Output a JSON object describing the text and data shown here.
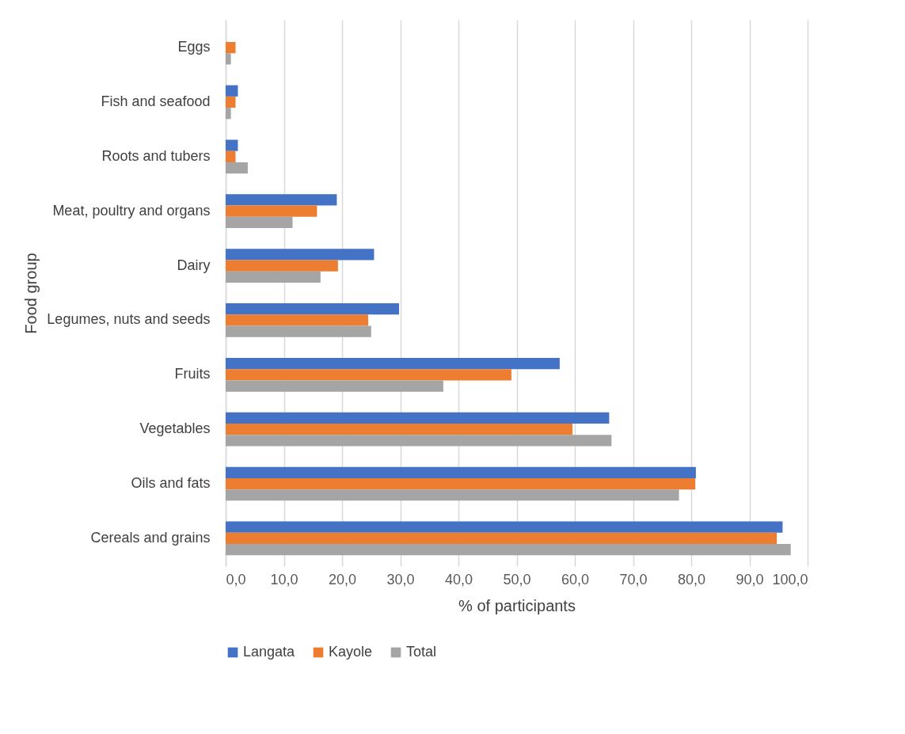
{
  "chart_data": {
    "type": "bar",
    "orientation": "horizontal",
    "xlabel": "% of participants",
    "ylabel": "Food group",
    "categories": [
      "Eggs",
      "Fish and seafood",
      "Roots and tubers",
      "Meat, poultry and organs",
      "Dairy",
      "Legumes, nuts and seeds",
      "Fruits",
      "Vegetables",
      "Oils and fats",
      "Cereals and grains"
    ],
    "series": [
      {
        "name": "Langata",
        "color": "#4472c4",
        "values": [
          0,
          2.1,
          2.1,
          19.1,
          25.5,
          29.8,
          57.4,
          65.9,
          80.8,
          95.7
        ]
      },
      {
        "name": "Kayole",
        "color": "#ed7d31",
        "values": [
          1.7,
          1.7,
          1.7,
          15.7,
          19.3,
          24.5,
          49.1,
          59.6,
          80.7,
          94.7
        ]
      },
      {
        "name": "Total",
        "color": "#a5a5a5",
        "values": [
          0.9,
          0.9,
          3.8,
          11.5,
          16.3,
          25.0,
          37.4,
          66.3,
          77.9,
          97.1
        ]
      }
    ],
    "xlim": [
      0,
      100
    ],
    "xticks": [
      {
        "value": 0,
        "label": "0,0"
      },
      {
        "value": 10,
        "label": "10,0"
      },
      {
        "value": 20,
        "label": "20,0"
      },
      {
        "value": 30,
        "label": "30,0"
      },
      {
        "value": 40,
        "label": "40,0"
      },
      {
        "value": 50,
        "label": "50,0"
      },
      {
        "value": 60,
        "label": "60,0"
      },
      {
        "value": 70,
        "label": "70,0"
      },
      {
        "value": 80,
        "label": "80,0"
      },
      {
        "value": 90,
        "label": "90,0"
      },
      {
        "value": 100,
        "label": "100,0"
      }
    ],
    "grid": "x",
    "legend": "bottom"
  }
}
